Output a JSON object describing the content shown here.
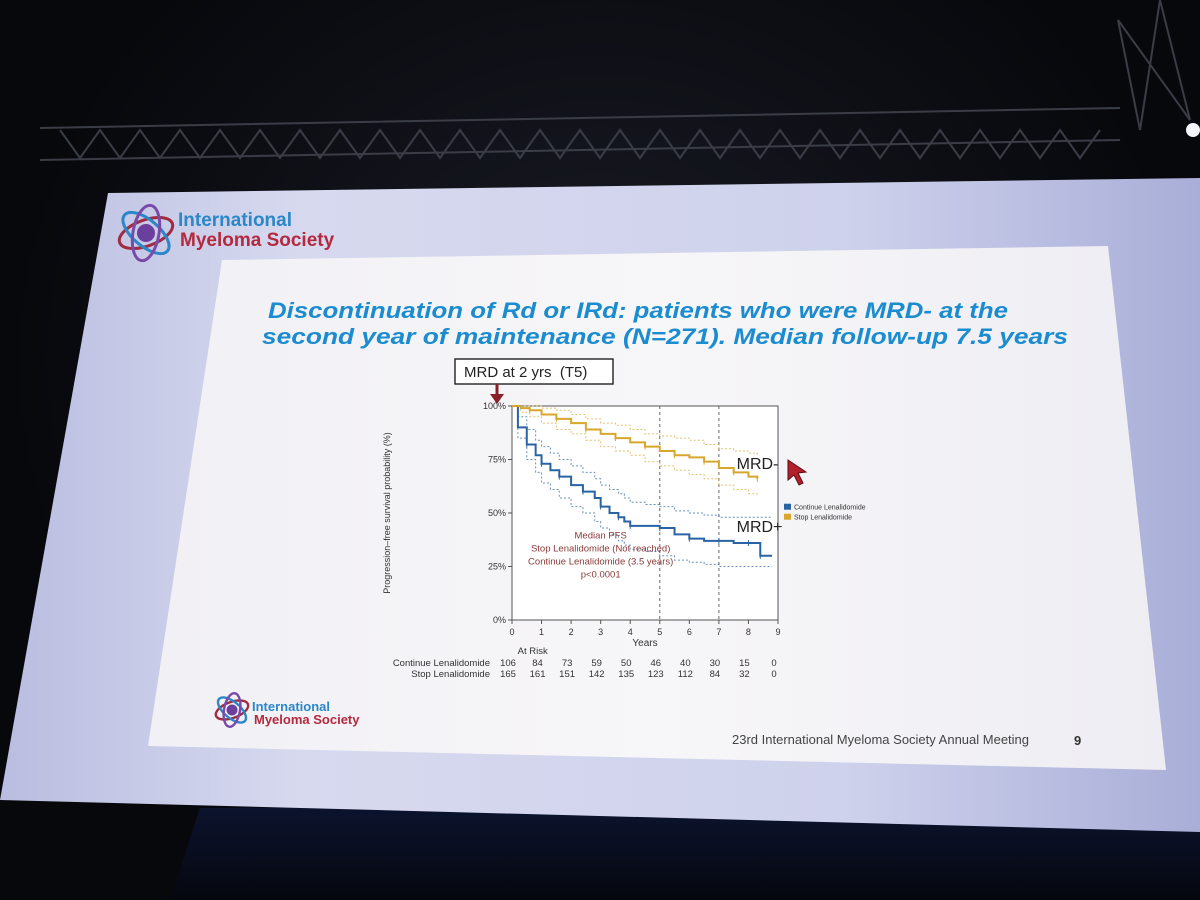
{
  "screen_header": {
    "org_line1": "International",
    "org_line2": "Myeloma Society"
  },
  "slide": {
    "title_line1": "Discontinuation of Rd or IRd: patients who were MRD- at the",
    "title_line2_pre": "second year of maintenance (",
    "title_line2_n": "N",
    "title_line2_post": "=271). Median follow-up 7.5 years",
    "callout": "MRD at 2 yrs  (T5)",
    "footer_org_line1": "International",
    "footer_org_line2": "Myeloma Society",
    "meeting": "23rd International Myeloma Society Annual Meeting",
    "page_number": "9"
  },
  "colors": {
    "title": "#1a8ccf",
    "continue_series": "#2a63a3",
    "stop_series": "#d8a62c",
    "annotation": "#8a3a3a",
    "brand_blue": "#2b87c8",
    "brand_red": "#b32a3f"
  },
  "chart_data": {
    "type": "line",
    "subtype": "kaplan-meier",
    "ylabel": "Progression–free survival probability (%)",
    "xlabel": "Years",
    "x_ticks": [
      0,
      1,
      2,
      3,
      4,
      5,
      6,
      7,
      8,
      9
    ],
    "y_ticks": [
      "0%",
      "25%",
      "50%",
      "75%",
      "100%"
    ],
    "ylim": [
      0,
      100
    ],
    "xlim": [
      0,
      9
    ],
    "reference_lines_x": [
      5,
      7
    ],
    "series": [
      {
        "name": "Continue Lenalidomide",
        "color": "#2a63a3",
        "x": [
          0,
          0.2,
          0.5,
          0.8,
          1.0,
          1.3,
          1.6,
          2.0,
          2.4,
          2.8,
          3.0,
          3.3,
          3.6,
          3.8,
          4.0,
          4.5,
          5.0,
          5.5,
          6.0,
          6.5,
          7.0,
          7.5,
          8.0,
          8.3,
          8.4,
          8.8
        ],
        "values": [
          100,
          90,
          82,
          77,
          73,
          70,
          67,
          63,
          60,
          57,
          53,
          50,
          48,
          46,
          44,
          44,
          43,
          40,
          38,
          37,
          37,
          36,
          36,
          36,
          30,
          30
        ],
        "ci_upper": [
          100,
          95,
          89,
          84,
          81,
          78,
          75,
          72,
          69,
          66,
          63,
          61,
          59,
          57,
          55,
          54,
          53,
          51,
          50,
          49,
          48,
          48,
          48,
          48,
          48,
          48
        ],
        "ci_lower": [
          100,
          85,
          75,
          69,
          64,
          61,
          57,
          53,
          50,
          46,
          43,
          40,
          37,
          35,
          33,
          32,
          30,
          28,
          27,
          26,
          25,
          25,
          25,
          25,
          25,
          25
        ]
      },
      {
        "name": "Stop Lenalidomide",
        "color": "#d8a62c",
        "x": [
          0,
          0.3,
          0.6,
          1.0,
          1.5,
          2.0,
          2.5,
          3.0,
          3.5,
          4.0,
          4.5,
          5.0,
          5.5,
          6.0,
          6.5,
          7.0,
          7.5,
          8.0,
          8.3
        ],
        "values": [
          100,
          99,
          98,
          96,
          94,
          92,
          89,
          87,
          85,
          83,
          81,
          79,
          77,
          76,
          74,
          71,
          69,
          67,
          66
        ],
        "ci_upper": [
          100,
          100,
          100,
          99,
          98,
          96,
          94,
          92,
          91,
          89,
          87,
          86,
          85,
          84,
          82,
          80,
          79,
          78,
          77
        ],
        "ci_lower": [
          100,
          97,
          95,
          92,
          89,
          87,
          84,
          81,
          79,
          77,
          74,
          72,
          70,
          68,
          66,
          63,
          61,
          59,
          58
        ]
      }
    ],
    "labels": {
      "mrd_neg": "MRD-",
      "mrd_pos": "MRD+"
    },
    "annotation": {
      "line1": "Median PFS",
      "line2": "Stop Lenalidomide (Not reached)",
      "line3": "Continue Lenalidomide (3.5 years)",
      "line4": "p<0.0001"
    },
    "legend": {
      "placement": "right",
      "entries": [
        "Continue Lenalidomide",
        "Stop Lenalidomide"
      ]
    },
    "at_risk": {
      "header": "At Risk",
      "rows": [
        {
          "name": "Continue Lenalidomide",
          "values": [
            "106",
            "84",
            "73",
            "59",
            "50",
            "46",
            "40",
            "30",
            "15",
            "0"
          ]
        },
        {
          "name": "Stop Lenalidomide",
          "values": [
            "165",
            "161",
            "151",
            "142",
            "135",
            "123",
            "112",
            "84",
            "32",
            "0"
          ]
        }
      ]
    }
  }
}
